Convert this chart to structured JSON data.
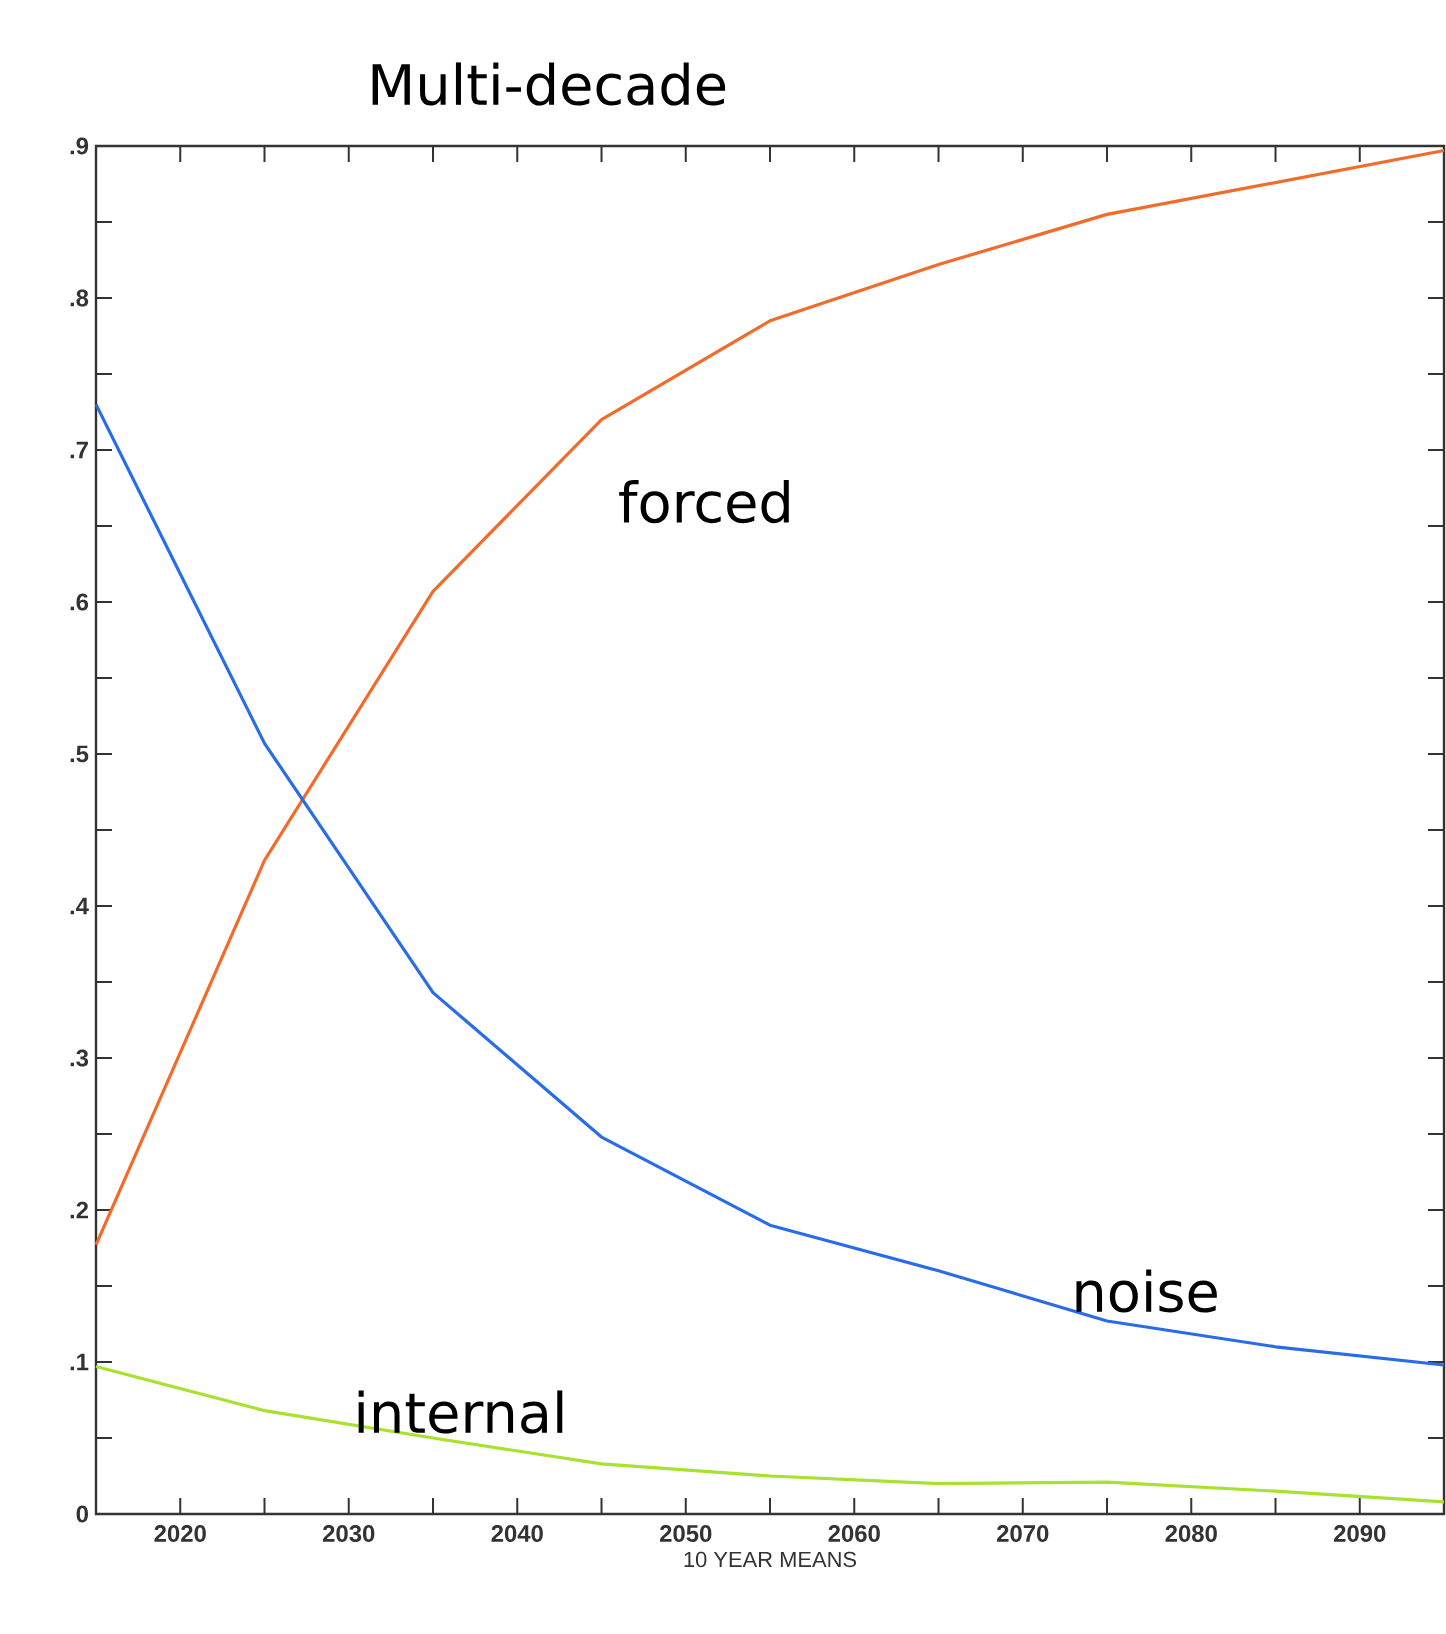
{
  "chart_data": {
    "type": "line",
    "title": "Multi-decade",
    "xlabel": "10 YEAR MEANS",
    "x": [
      2015,
      2025,
      2035,
      2045,
      2055,
      2065,
      2075,
      2085,
      2095
    ],
    "series": [
      {
        "name": "forced",
        "color": "#f26b2a",
        "values": [
          0.177,
          0.43,
          0.607,
          0.72,
          0.785,
          0.822,
          0.855,
          0.876,
          0.897
        ]
      },
      {
        "name": "noise",
        "color": "#2a6be8",
        "values": [
          0.73,
          0.507,
          0.343,
          0.248,
          0.19,
          0.16,
          0.127,
          0.11,
          0.098
        ]
      },
      {
        "name": "internal",
        "color": "#a6e22e",
        "values": [
          0.097,
          0.068,
          0.05,
          0.033,
          0.025,
          0.02,
          0.021,
          0.015,
          0.008
        ]
      }
    ],
    "xlim": [
      2015,
      2095
    ],
    "xticks": [
      2020,
      2030,
      2040,
      2050,
      2060,
      2070,
      2080,
      2090,
      {
        "value": 2025,
        "label": null
      },
      {
        "value": 2035,
        "label": null
      },
      {
        "value": 2045,
        "label": null
      },
      {
        "value": 2055,
        "label": null
      },
      {
        "value": 2065,
        "label": null
      },
      {
        "value": 2075,
        "label": null
      },
      {
        "value": 2085,
        "label": null
      }
    ],
    "ylim": [
      0,
      0.9
    ],
    "yticks": [
      0,
      {
        "value": 0.1,
        "label": ".1"
      },
      {
        "value": 0.2,
        "label": ".2"
      },
      {
        "value": 0.3,
        "label": ".3"
      },
      {
        "value": 0.4,
        "label": ".4"
      },
      {
        "value": 0.5,
        "label": ".5"
      },
      {
        "value": 0.6,
        "label": ".6"
      },
      {
        "value": 0.7,
        "label": ".7"
      },
      {
        "value": 0.8,
        "label": ".8"
      },
      {
        "value": 0.9,
        "label": ".9"
      },
      {
        "value": 0.05,
        "label": null
      },
      {
        "value": 0.15,
        "label": null
      },
      {
        "value": 0.25,
        "label": null
      },
      {
        "value": 0.35,
        "label": null
      },
      {
        "value": 0.45,
        "label": null
      },
      {
        "value": 0.55,
        "label": null
      },
      {
        "value": 0.65,
        "label": null
      },
      {
        "value": 0.75,
        "label": null
      },
      {
        "value": 0.85,
        "label": null
      }
    ]
  }
}
